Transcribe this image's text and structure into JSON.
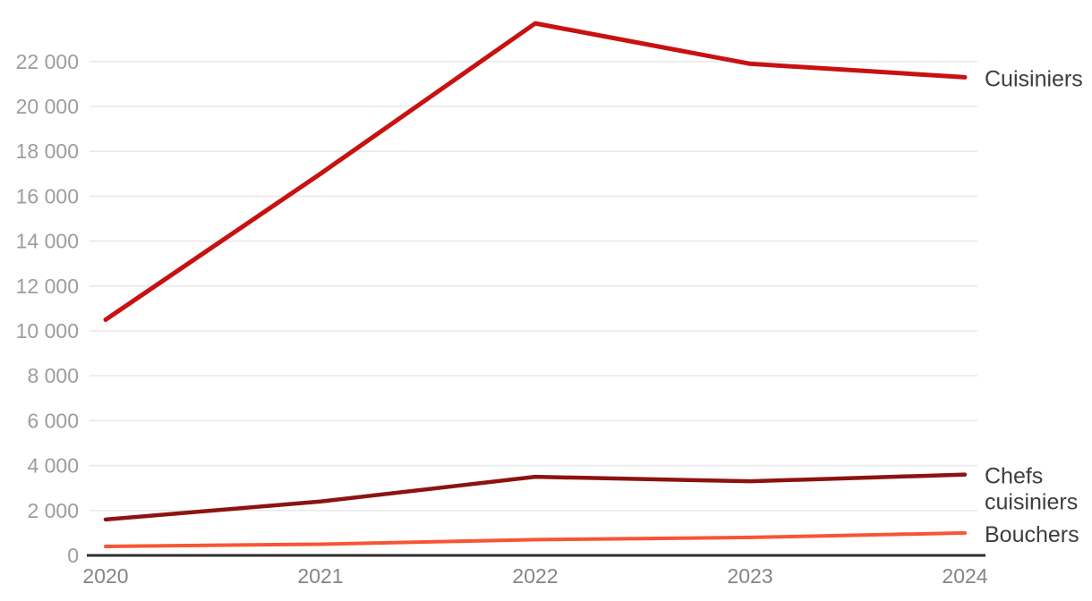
{
  "chart_data": {
    "type": "line",
    "x_categories": [
      "2020",
      "2021",
      "2022",
      "2023",
      "2024"
    ],
    "series": [
      {
        "name": "Cuisiniers",
        "values": [
          10500,
          17000,
          23700,
          21900,
          21300
        ],
        "color": "#c81110",
        "label_lines": [
          "Cuisiniers"
        ]
      },
      {
        "name": "Chefs cuisiniers",
        "values": [
          1600,
          2400,
          3500,
          3300,
          3600
        ],
        "color": "#8c1311",
        "label_lines": [
          "Chefs",
          "cuisiniers"
        ]
      },
      {
        "name": "Bouchers",
        "values": [
          400,
          500,
          700,
          800,
          1000
        ],
        "color": "#f85534",
        "label_lines": [
          "Bouchers"
        ]
      }
    ],
    "title": "",
    "xlabel": "",
    "ylabel": "",
    "ylim": [
      0,
      24000
    ],
    "yticks": [
      {
        "value": 0,
        "label": "0"
      },
      {
        "value": 2000,
        "label": "2 000"
      },
      {
        "value": 4000,
        "label": "4 000"
      },
      {
        "value": 6000,
        "label": "6 000"
      },
      {
        "value": 8000,
        "label": "8 000"
      },
      {
        "value": 10000,
        "label": "10 000"
      },
      {
        "value": 12000,
        "label": "12 000"
      },
      {
        "value": 14000,
        "label": "14 000"
      },
      {
        "value": 16000,
        "label": "16 000"
      },
      {
        "value": 18000,
        "label": "18 000"
      },
      {
        "value": 20000,
        "label": "20 000"
      },
      {
        "value": 22000,
        "label": "22 000"
      }
    ],
    "grid": "horizontal",
    "legend_position": "right-inline-labels"
  },
  "colors": {
    "background": "#ffffff",
    "gridline": "#e9e9e9",
    "axis_line": "#2d2d2d",
    "y_tick_label": "#9c9c9c",
    "x_tick_label": "#858585",
    "series_label": "#3d3d3d"
  }
}
